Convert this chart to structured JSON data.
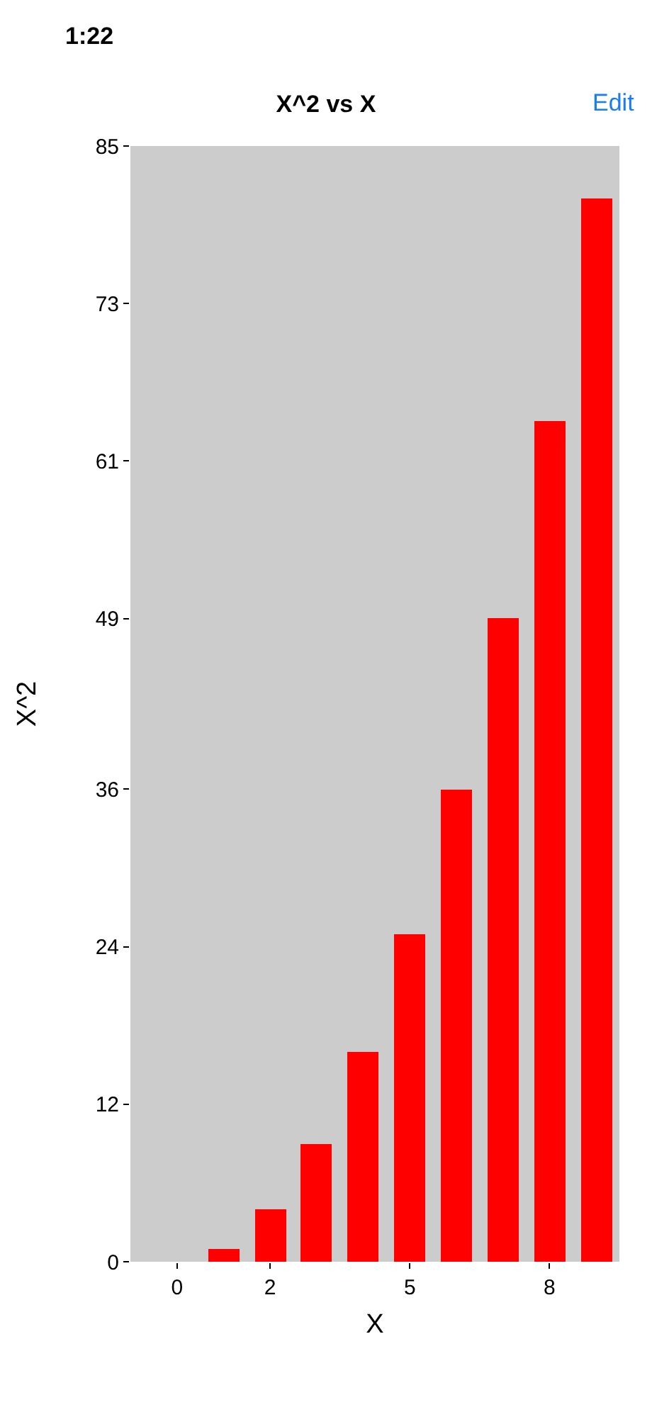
{
  "chart_data": {
    "type": "bar",
    "title": "X^2 vs X",
    "xlabel": "X",
    "ylabel": "X^2",
    "x": [
      0,
      1,
      2,
      3,
      4,
      5,
      6,
      7,
      8,
      9
    ],
    "values": [
      0,
      1,
      4,
      9,
      16,
      25,
      36,
      49,
      64,
      81
    ],
    "color": "#ff0000",
    "xlim": [
      -1,
      9.5
    ],
    "xticks": [
      0,
      2,
      5,
      8
    ],
    "ylim": [
      0,
      85
    ],
    "yticks": [
      0,
      12,
      24,
      36,
      49,
      61,
      73,
      85
    ],
    "annotations": [
      "1:22",
      "Edit"
    ]
  }
}
